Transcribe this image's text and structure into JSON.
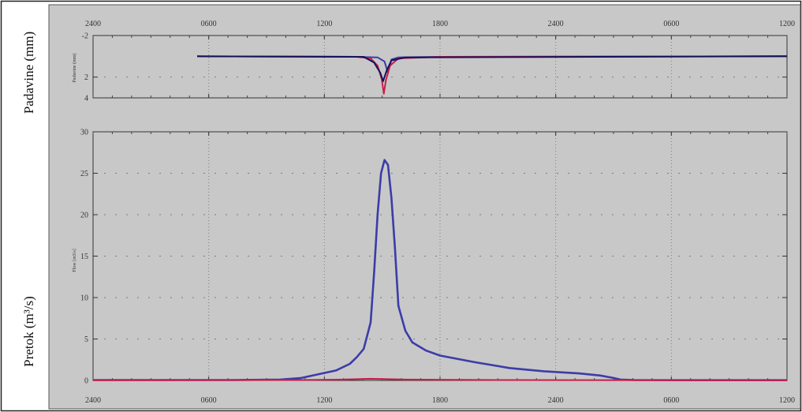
{
  "labels": {
    "top_ylabel": "Padavine (mm)",
    "bottom_ylabel": "Pretok (m³/s)",
    "top_inner_ylabel": "Padavine (mm)",
    "bottom_inner_ylabel": "Flow [m3/s]"
  },
  "colors": {
    "background": "#c8c8c8",
    "grid": "#7c7c7c",
    "series_blue": "#3c3ca8",
    "series_red": "#c81e4b",
    "series_navy": "#12125a"
  },
  "chart_data": [
    {
      "type": "line",
      "name": "precipitation",
      "x_ticks": [
        "2400",
        "0600",
        "1200",
        "1800",
        "2400",
        "0600",
        "1200"
      ],
      "ylim": [
        4,
        -2
      ],
      "y_ticks": [
        "-2",
        "2",
        "4"
      ],
      "grid": true,
      "series": [
        {
          "values": [
            [
              0.15,
              0
            ],
            [
              0.38,
              0.05
            ],
            [
              0.41,
              0.1
            ],
            [
              0.42,
              0.5
            ],
            [
              0.425,
              1.6
            ],
            [
              0.43,
              0.3
            ],
            [
              0.44,
              0.1
            ],
            [
              0.5,
              0.05
            ],
            [
              1.0,
              0
            ]
          ]
        },
        {
          "values": [
            [
              0.15,
              0
            ],
            [
              0.38,
              0.05
            ],
            [
              0.4,
              0.2
            ],
            [
              0.41,
              0.9
            ],
            [
              0.416,
              2.2
            ],
            [
              0.419,
              3.6
            ],
            [
              0.422,
              2.3
            ],
            [
              0.428,
              0.9
            ],
            [
              0.44,
              0.2
            ],
            [
              0.5,
              0.05
            ],
            [
              1.0,
              0
            ]
          ]
        },
        {
          "values": [
            [
              0.15,
              0
            ],
            [
              0.39,
              0.05
            ],
            [
              0.405,
              0.6
            ],
            [
              0.414,
              1.6
            ],
            [
              0.418,
              2.4
            ],
            [
              0.423,
              1.4
            ],
            [
              0.43,
              0.4
            ],
            [
              0.45,
              0.1
            ],
            [
              1.0,
              0
            ]
          ]
        }
      ]
    },
    {
      "type": "line",
      "name": "discharge",
      "x_ticks": [
        "2400",
        "0600",
        "1200",
        "1800",
        "2400",
        "0600",
        "1200"
      ],
      "ylim": [
        0,
        30
      ],
      "y_ticks": [
        "0",
        "5",
        "10",
        "15",
        "20",
        "25",
        "30"
      ],
      "grid": true,
      "series": [
        {
          "values": [
            [
              0,
              0.05
            ],
            [
              0.1,
              0.05
            ],
            [
              0.2,
              0.05
            ],
            [
              0.27,
              0.1
            ],
            [
              0.3,
              0.3
            ],
            [
              0.35,
              1.2
            ],
            [
              0.37,
              2.0
            ],
            [
              0.38,
              2.8
            ],
            [
              0.39,
              3.8
            ],
            [
              0.4,
              7.0
            ],
            [
              0.405,
              13.0
            ],
            [
              0.41,
              20.0
            ],
            [
              0.415,
              25.0
            ],
            [
              0.42,
              26.6
            ],
            [
              0.425,
              26.0
            ],
            [
              0.43,
              22.0
            ],
            [
              0.435,
              16.0
            ],
            [
              0.44,
              9.0
            ],
            [
              0.45,
              6.0
            ],
            [
              0.46,
              4.6
            ],
            [
              0.48,
              3.6
            ],
            [
              0.5,
              3.0
            ],
            [
              0.55,
              2.2
            ],
            [
              0.6,
              1.5
            ],
            [
              0.65,
              1.1
            ],
            [
              0.7,
              0.85
            ],
            [
              0.73,
              0.6
            ],
            [
              0.75,
              0.3
            ],
            [
              0.76,
              0.1
            ],
            [
              0.78,
              0.05
            ],
            [
              0.85,
              0.03
            ],
            [
              1.0,
              0.03
            ]
          ]
        },
        {
          "values": [
            [
              0,
              0.02
            ],
            [
              0.3,
              0.05
            ],
            [
              0.36,
              0.1
            ],
            [
              0.4,
              0.2
            ],
            [
              0.45,
              0.1
            ],
            [
              0.6,
              0.05
            ],
            [
              1.0,
              0.02
            ]
          ]
        }
      ]
    }
  ]
}
